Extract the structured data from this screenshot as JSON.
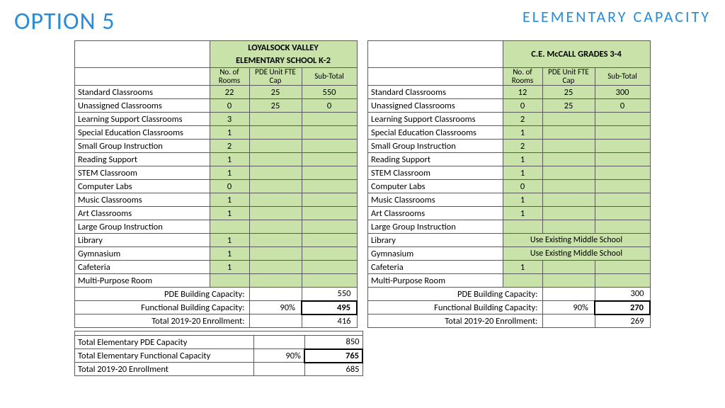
{
  "header": {
    "option": "OPTION 5",
    "title": "ELEMENTARY CAPACITY"
  },
  "colheads": {
    "rooms": "No. of Rooms",
    "cap": "PDE Unit FTE Cap",
    "sub": "Sub-Total"
  },
  "left": {
    "name1": "LOYALSOCK VALLEY",
    "name2": "ELEMENTARY SCHOOL K-2",
    "rows": [
      {
        "label": "Standard Classrooms",
        "rooms": "22",
        "cap": "25",
        "sub": "550"
      },
      {
        "label": "Unassigned Classrooms",
        "rooms": "0",
        "cap": "25",
        "sub": "0"
      },
      {
        "label": "Learning Support Classrooms",
        "rooms": "3",
        "cap": "",
        "sub": ""
      },
      {
        "label": "Special Education Classrooms",
        "rooms": "1",
        "cap": "",
        "sub": ""
      },
      {
        "label": "Small Group Instruction",
        "rooms": "2",
        "cap": "",
        "sub": ""
      },
      {
        "label": "Reading Support",
        "rooms": "1",
        "cap": "",
        "sub": ""
      },
      {
        "label": "STEM Classroom",
        "rooms": "1",
        "cap": "",
        "sub": ""
      },
      {
        "label": "Computer Labs",
        "rooms": "0",
        "cap": "",
        "sub": ""
      },
      {
        "label": "Music Classrooms",
        "rooms": "1",
        "cap": "",
        "sub": ""
      },
      {
        "label": "Art Classrooms",
        "rooms": "1",
        "cap": "",
        "sub": ""
      },
      {
        "label": "Large Group Instruction",
        "rooms": "",
        "cap": "",
        "sub": ""
      },
      {
        "label": "Library",
        "rooms": "1",
        "cap": "",
        "sub": ""
      },
      {
        "label": "Gymnasium",
        "rooms": "1",
        "cap": "",
        "sub": ""
      },
      {
        "label": "Cafeteria",
        "rooms": "1",
        "cap": "",
        "sub": ""
      },
      {
        "label": "Multi-Purpose Room",
        "rooms": "",
        "cap": "",
        "sub": ""
      }
    ],
    "pdeLabel": "PDE Building Capacity:",
    "pdeVal": "550",
    "funcLabel": "Functional Building Capacity:",
    "funcPct": "90%",
    "funcVal": "495",
    "enrollLabel": "Total 2019-20 Enrollment:",
    "enrollVal": "416"
  },
  "right": {
    "name1": "C.E. McCALL GRADES 3-4",
    "rows": [
      {
        "label": "Standard Classrooms",
        "rooms": "12",
        "cap": "25",
        "sub": "300"
      },
      {
        "label": "Unassigned Classrooms",
        "rooms": "0",
        "cap": "25",
        "sub": "0"
      },
      {
        "label": "Learning Support Classrooms",
        "rooms": "2",
        "cap": "",
        "sub": ""
      },
      {
        "label": "Special Education Classrooms",
        "rooms": "1",
        "cap": "",
        "sub": ""
      },
      {
        "label": "Small Group Instruction",
        "rooms": "2",
        "cap": "",
        "sub": ""
      },
      {
        "label": "Reading Support",
        "rooms": "1",
        "cap": "",
        "sub": ""
      },
      {
        "label": "STEM Classroom",
        "rooms": "1",
        "cap": "",
        "sub": ""
      },
      {
        "label": "Computer Labs",
        "rooms": "0",
        "cap": "",
        "sub": ""
      },
      {
        "label": "Music Classrooms",
        "rooms": "1",
        "cap": "",
        "sub": ""
      },
      {
        "label": "Art Classrooms",
        "rooms": "1",
        "cap": "",
        "sub": ""
      },
      {
        "label": "Large Group Instruction",
        "rooms": "",
        "cap": "",
        "sub": ""
      },
      {
        "label": "Library",
        "merged": "Use Existing Middle School"
      },
      {
        "label": "Gymnasium",
        "merged": "Use Existing Middle School"
      },
      {
        "label": "Cafeteria",
        "rooms": "1",
        "cap": "",
        "sub": ""
      },
      {
        "label": "Multi-Purpose Room",
        "rooms": "",
        "cap": "",
        "sub": ""
      }
    ],
    "pdeLabel": "PDE Building Capacity:",
    "pdeVal": "300",
    "funcLabel": "Functional Building Capacity:",
    "funcPct": "90%",
    "funcVal": "270",
    "enrollLabel": "Total 2019-20 Enrollment:",
    "enrollVal": "269"
  },
  "totals": {
    "pdeLabel": "Total Elementary PDE Capacity",
    "pdeVal": "850",
    "funcLabel": "Total Elementary Functional Capacity",
    "funcPct": "90%",
    "funcVal": "765",
    "enrollLabel": "Total 2019-20 Enrollment",
    "enrollVal": "685"
  },
  "colors": {
    "green": "#c9e2a9",
    "blue": "#2a8cd8",
    "border": "#5a5a5a"
  }
}
